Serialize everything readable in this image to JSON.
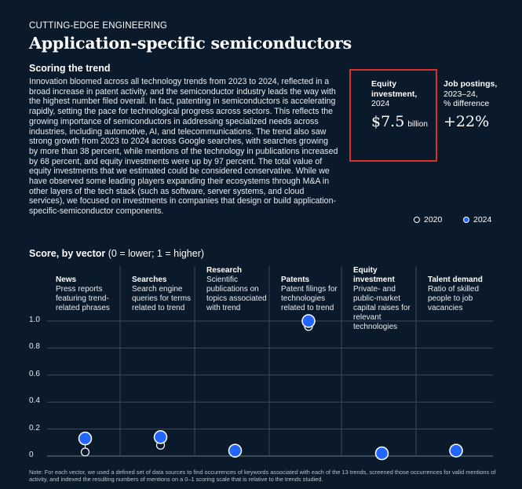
{
  "header": {
    "eyebrow": "CUTTING-EDGE ENGINEERING",
    "title": "Application-specific semiconductors",
    "subtitle": "Scoring the trend",
    "body": "Innovation bloomed across all technology trends from 2023 to 2024, reflected in a broad increase in patent activity, and the semiconductor industry leads the way with the highest number filed overall. In fact, patenting in semiconductors is accelerating rapidly, setting the pace for technological progress across sectors. This reflects the growing importance of semiconductors in addressing specialized needs across industries, including automotive, AI, and telecommunications. The trend also saw strong growth from 2023 to 2024 across Google searches, with searches growing by more than 38 percent, while mentions of the technology in publications increased by 68 percent, and equity investments were up by 97 percent. The total value of equity investments that we estimated could be considered conservative. While we have observed some leading players expanding their ecosystems through M&A in other layers of the tech stack (such as software, server systems, and cloud services), we focused on investments in companies that design or build application-specific-semiconductor components."
  },
  "stats": {
    "equity": {
      "label_bold": "Equity investment,",
      "label_sub": "2024",
      "value": "$7.5",
      "unit": "billion"
    },
    "jobs": {
      "label_bold": "Job postings,",
      "label_sub1": "2023–24,",
      "label_sub2": "% difference",
      "value": "+22%"
    }
  },
  "legend": {
    "a": "2020",
    "b": "2024"
  },
  "score_title": {
    "bold": "Score, by vector",
    "rest": " (0 = lower; 1 = higher)"
  },
  "columns": [
    {
      "name": "News",
      "desc": "Press reports featuring trend-related phrases"
    },
    {
      "name": "Searches",
      "desc": "Search engine queries for terms related to trend"
    },
    {
      "name": "Research",
      "desc": "Scientific publications on topics associated with trend"
    },
    {
      "name": "Patents",
      "desc": "Patent filings for technologies related to trend"
    },
    {
      "name": "Equity investment",
      "desc": "Private- and public-market capital raises for relevant technologies"
    },
    {
      "name": "Talent demand",
      "desc": "Ratio of skilled people to job vacancies"
    }
  ],
  "note": "Note: For each vector, we used a defined set of data sources to find occurrences of keywords associated with each of the 13 trends, screened those occurrences for valid mentions of activity, and indexed the resulting numbers of mentions on a 0–1 scoring scale that is relative to the trends studied.",
  "colors": {
    "background": "#0a1a2b",
    "accent_2024": "#2266ff",
    "highlight_box": "#d6322b"
  },
  "chart_data": {
    "type": "scatter",
    "categories": [
      "News",
      "Searches",
      "Research",
      "Patents",
      "Equity investment",
      "Talent demand"
    ],
    "series": [
      {
        "name": "2020",
        "values": [
          0.03,
          0.08,
          0.02,
          0.96,
          0.01,
          0.03
        ]
      },
      {
        "name": "2024",
        "values": [
          0.13,
          0.14,
          0.04,
          1.0,
          0.02,
          0.04
        ]
      }
    ],
    "ylim": [
      0,
      1
    ],
    "yticks": [
      "1.0",
      "0.8",
      "0.6",
      "0.4",
      "0.2",
      "0"
    ],
    "ytick_values": [
      1.0,
      0.8,
      0.6,
      0.4,
      0.2,
      0
    ],
    "grid": true
  }
}
